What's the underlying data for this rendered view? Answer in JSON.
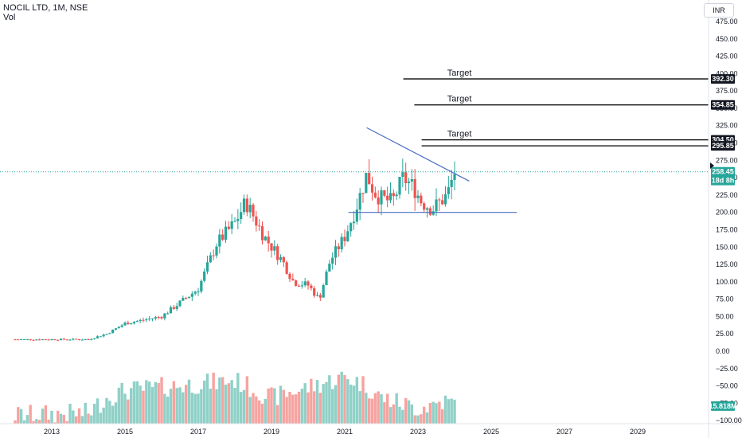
{
  "header": {
    "symbol_line": "NOCIL LTD, 1M, NSE",
    "vol_label": "Vol",
    "currency": "INR"
  },
  "colors": {
    "up": "#26a69a",
    "down": "#ef5350",
    "up_vol": "#8fd0c7",
    "down_vol": "#f6a3a0",
    "trend": "#4a6fc2",
    "target": "#000000",
    "price_line": "#26a69a"
  },
  "chart_data": {
    "type": "candlestick",
    "title": "NOCIL LTD, 1M, NSE",
    "ylim": [
      -100,
      500
    ],
    "y_ticks": [
      -100,
      -75,
      -50,
      -25,
      0,
      25,
      50,
      75,
      100,
      125,
      150,
      175,
      200,
      225,
      250,
      275,
      300,
      325,
      350,
      375,
      400,
      425,
      450,
      475
    ],
    "y_tick_labels": [
      "−100.00",
      "−75.00",
      "−50.00",
      "−25.00",
      "0.00",
      "25.00",
      "50.00",
      "75.00",
      "100.00",
      "125.00",
      "150.00",
      "175.00",
      "200.00",
      "225.00",
      "250.00",
      "275.00",
      "300.00",
      "325.00",
      "350.00",
      "375.00",
      "400.00",
      "425.00",
      "450.00",
      "475.00"
    ],
    "x_ticks": [
      "2013",
      "2015",
      "2017",
      "2019",
      "2021",
      "2023",
      "2025",
      "2027",
      "2029"
    ],
    "price_labels": [
      {
        "value": "392.30",
        "y": 392.3,
        "style": "dark"
      },
      {
        "value": "354.85",
        "y": 354.85,
        "style": "dark"
      },
      {
        "value": "304.50",
        "y": 304.5,
        "style": "dark"
      },
      {
        "value": "295.85",
        "y": 295.85,
        "style": "dark"
      },
      {
        "value": "258.45",
        "y": 258.45,
        "style": "green"
      },
      {
        "value": "18d 8h",
        "y": 246,
        "style": "green"
      },
      {
        "value": "15.818M",
        "y": -79,
        "style": "green"
      }
    ],
    "annotations": [
      {
        "text": "Target",
        "level": 392.3,
        "x_start": "2022.6",
        "text_x": "2023.8"
      },
      {
        "text": "Target",
        "level": 354.85,
        "x_start": "2022.9",
        "text_x": "2023.8"
      },
      {
        "text": "Target",
        "level": 304.5,
        "x_start": "2023.1",
        "text_x": "2023.8"
      }
    ],
    "lines": [
      {
        "name": "descending trendline",
        "from": [
          "2021.6",
          322
        ],
        "to": [
          "2024.4",
          245
        ]
      },
      {
        "name": "support line",
        "from": [
          "2021.1",
          200
        ],
        "to": [
          "2025.7",
          200
        ]
      },
      {
        "name": "target 295.85",
        "from": [
          "2023.1",
          295.85
        ],
        "to": [
          "2029.9",
          295.85
        ]
      }
    ],
    "current_price": 258.45,
    "series": [
      {
        "name": "Price",
        "anchors": [
          [
            2012.0,
            17
          ],
          [
            2014.0,
            17
          ],
          [
            2014.5,
            25
          ],
          [
            2015.0,
            40
          ],
          [
            2016.0,
            50
          ],
          [
            2017.0,
            90
          ],
          [
            2017.5,
            155
          ],
          [
            2018.0,
            185
          ],
          [
            2018.3,
            215
          ],
          [
            2018.8,
            165
          ],
          [
            2019.3,
            130
          ],
          [
            2019.6,
            100
          ],
          [
            2020.0,
            95
          ],
          [
            2020.3,
            75
          ],
          [
            2020.6,
            130
          ],
          [
            2021.0,
            165
          ],
          [
            2021.3,
            205
          ],
          [
            2021.6,
            255
          ],
          [
            2021.8,
            230
          ],
          [
            2022.0,
            220
          ],
          [
            2022.3,
            215
          ],
          [
            2022.6,
            250
          ],
          [
            2022.9,
            235
          ],
          [
            2023.1,
            215
          ],
          [
            2023.4,
            205
          ],
          [
            2023.8,
            225
          ],
          [
            2024.0,
            258.45
          ]
        ]
      },
      {
        "name": "Vol",
        "anchors": [
          [
            2012.0,
            -95
          ],
          [
            2014.0,
            -92
          ],
          [
            2014.5,
            -70
          ],
          [
            2015.0,
            -60
          ],
          [
            2016.0,
            -55
          ],
          [
            2017.0,
            -50
          ],
          [
            2018.0,
            -45
          ],
          [
            2019.0,
            -70
          ],
          [
            2020.0,
            -55
          ],
          [
            2021.0,
            -40
          ],
          [
            2021.5,
            -50
          ],
          [
            2022.0,
            -70
          ],
          [
            2023.0,
            -85
          ],
          [
            2023.7,
            -75
          ],
          [
            2024.0,
            -79
          ]
        ]
      }
    ]
  }
}
